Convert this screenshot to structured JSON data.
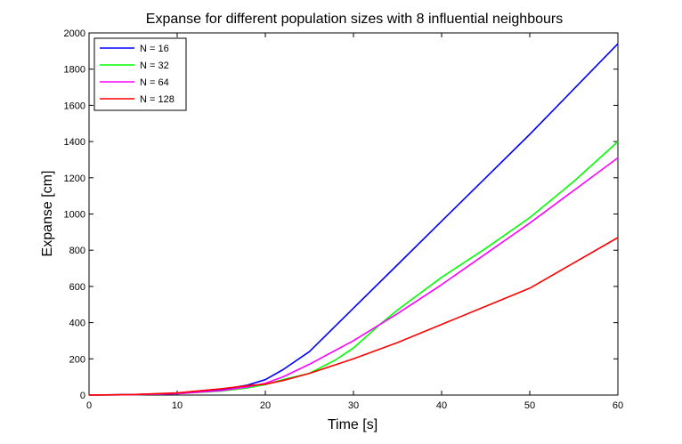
{
  "chart_data": {
    "type": "line",
    "title": "Expanse for different population sizes with 8 influential neighbours",
    "xlabel": "Time [s]",
    "ylabel": "Expanse [cm]",
    "xlim": [
      0,
      60
    ],
    "ylim": [
      0,
      2000
    ],
    "xticks": [
      "0",
      "10",
      "20",
      "30",
      "40",
      "50",
      "60"
    ],
    "yticks": [
      "0",
      "200",
      "400",
      "600",
      "800",
      "1000",
      "1200",
      "1400",
      "1600",
      "1800",
      "2000"
    ],
    "grid": false,
    "legend_position": "top-left",
    "series": [
      {
        "name": "N = 16",
        "color": "#0000ff",
        "x": [
          0,
          5,
          10,
          15,
          18,
          20,
          22,
          25,
          30,
          35,
          40,
          45,
          50,
          55,
          60
        ],
        "y": [
          0,
          3,
          10,
          30,
          55,
          85,
          140,
          240,
          480,
          720,
          960,
          1200,
          1440,
          1690,
          1940
        ]
      },
      {
        "name": "N = 32",
        "color": "#00ff00",
        "x": [
          0,
          5,
          10,
          15,
          18,
          20,
          22,
          25,
          28,
          30,
          33,
          35,
          40,
          45,
          50,
          55,
          60
        ],
        "y": [
          0,
          2,
          8,
          22,
          40,
          58,
          85,
          120,
          195,
          260,
          390,
          470,
          650,
          810,
          980,
          1180,
          1400
        ]
      },
      {
        "name": "N = 64",
        "color": "#ff00ff",
        "x": [
          0,
          5,
          10,
          15,
          18,
          20,
          22,
          25,
          30,
          35,
          40,
          45,
          50,
          55,
          60
        ],
        "y": [
          0,
          2,
          8,
          25,
          45,
          65,
          100,
          170,
          300,
          450,
          610,
          780,
          950,
          1130,
          1310
        ]
      },
      {
        "name": "N = 128",
        "color": "#ff0000",
        "x": [
          0,
          5,
          10,
          15,
          18,
          20,
          22,
          25,
          30,
          35,
          40,
          45,
          50,
          55,
          60
        ],
        "y": [
          0,
          3,
          12,
          35,
          52,
          60,
          80,
          120,
          200,
          290,
          390,
          490,
          590,
          730,
          870
        ]
      }
    ]
  }
}
